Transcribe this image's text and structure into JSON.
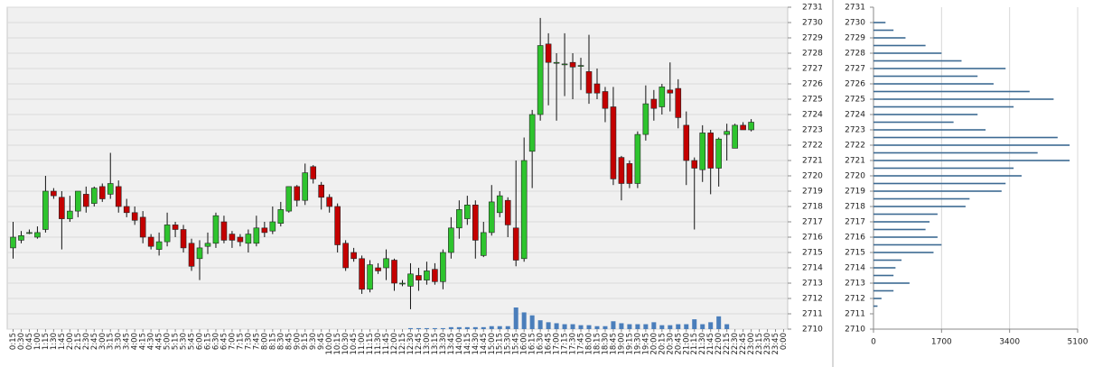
{
  "chart_data": [
    {
      "type": "candlestick",
      "categories": [
        "0:15",
        "0:30",
        "0:45",
        "1:00",
        "1:15",
        "1:30",
        "1:45",
        "2:00",
        "2:15",
        "2:30",
        "2:45",
        "3:00",
        "3:15",
        "3:30",
        "3:45",
        "4:00",
        "4:15",
        "4:30",
        "4:45",
        "5:00",
        "5:15",
        "5:30",
        "5:45",
        "6:00",
        "6:15",
        "6:30",
        "6:45",
        "7:00",
        "7:15",
        "7:30",
        "7:45",
        "8:00",
        "8:15",
        "8:30",
        "8:45",
        "9:00",
        "9:15",
        "9:30",
        "9:45",
        "10:00",
        "10:15",
        "10:30",
        "10:45",
        "11:00",
        "11:15",
        "11:30",
        "11:45",
        "12:00",
        "12:15",
        "12:30",
        "12:45",
        "13:00",
        "13:15",
        "13:30",
        "13:45",
        "14:00",
        "14:15",
        "14:30",
        "14:45",
        "15:00",
        "15:15",
        "15:30",
        "15:45",
        "16:00",
        "16:15",
        "16:30",
        "16:45",
        "17:00",
        "17:15",
        "17:30",
        "17:45",
        "18:00",
        "18:15",
        "18:30",
        "18:45",
        "19:00",
        "19:15",
        "19:30",
        "19:45",
        "20:00",
        "20:15",
        "20:30",
        "20:45",
        "21:00",
        "21:15",
        "21:30",
        "21:45",
        "22:00",
        "22:15",
        "22:30",
        "22:45",
        "23:00",
        "23:15",
        "23:30",
        "23:45",
        "0:00"
      ],
      "open": [
        2715.3,
        2715.8,
        2716.3,
        2716,
        2716.5,
        2719,
        2718.6,
        2717.2,
        2717.7,
        2718.8,
        2718.2,
        2719.3,
        2718.8,
        2719.3,
        2718,
        2717.6,
        2717.3,
        2716,
        2715.2,
        2715.7,
        2716.8,
        2716.5,
        2715.6,
        2714.6,
        2715.4,
        2715.6,
        2717,
        2716.2,
        2716,
        2715.6,
        2715.6,
        2716.6,
        2716.4,
        2716.9,
        2717.7,
        2719.3,
        2718.4,
        2720.6,
        2719.4,
        2718.6,
        2718,
        2715.6,
        2715,
        2714.6,
        2712.6,
        2714,
        2714,
        2714.5,
        2713,
        2712.8,
        2713.5,
        2713.2,
        2713.9,
        2713.1,
        2715,
        2716.6,
        2717.2,
        2718.1,
        2714.8,
        2716.3,
        2717.6,
        2718.4,
        2716.6,
        2714.6,
        2721.6,
        2724,
        2728.6,
        2727.4,
        2727.3,
        2727.4,
        2727.2,
        2726.8,
        2726,
        2725.5,
        2724.5,
        2721.2,
        2720.8,
        2719.5,
        2722.7,
        2725,
        2724.5,
        2725.6,
        2725.7,
        2723.3,
        2721,
        2720.4,
        2722.8,
        2720.5,
        2722.7,
        2721.8,
        2723.3,
        2723,
        null,
        null,
        null,
        null
      ],
      "high": [
        2717,
        2716.4,
        2716.5,
        2716.7,
        2720,
        2719.2,
        2719,
        2718.7,
        2719,
        2719.3,
        2719.3,
        2719.5,
        2721.5,
        2719.7,
        2718.5,
        2718,
        2717.7,
        2716.2,
        2716.3,
        2717.6,
        2717,
        2716.8,
        2715.9,
        2715.8,
        2716.3,
        2717.6,
        2717.4,
        2716.4,
        2716.2,
        2716.5,
        2717.4,
        2717,
        2718,
        2718.3,
        2719.3,
        2719.4,
        2720.8,
        2720.7,
        2719.6,
        2718.8,
        2718.2,
        2715.8,
        2715.3,
        2714.8,
        2714.5,
        2714.3,
        2715.2,
        2714.6,
        2713.2,
        2714.3,
        2714,
        2714.4,
        2714.3,
        2715.2,
        2717.3,
        2718.4,
        2718.7,
        2718.4,
        2717,
        2719.4,
        2719,
        2718.6,
        2721,
        2722.5,
        2724.3,
        2730.3,
        2729.3,
        2728,
        2729.3,
        2728,
        2727.7,
        2729.2,
        2727,
        2725.8,
        2725.8,
        2721.3,
        2721,
        2722.9,
        2725.9,
        2725.6,
        2726,
        2727.4,
        2726.3,
        2724.2,
        2721.2,
        2723.3,
        2723,
        2722.5,
        2723.4,
        2723.4,
        2723.5,
        2723.7,
        null,
        null,
        null,
        null
      ],
      "low": [
        2714.6,
        2715.6,
        2716.2,
        2715.9,
        2716.3,
        2718.5,
        2715.2,
        2717,
        2717.3,
        2717.6,
        2718,
        2718.3,
        2718.5,
        2717.6,
        2717.3,
        2716.8,
        2715.6,
        2715.2,
        2714.8,
        2715.4,
        2716,
        2715,
        2713.8,
        2713.2,
        2714.9,
        2715.3,
        2715.6,
        2715.3,
        2715.4,
        2715,
        2715.4,
        2716,
        2716.2,
        2716.7,
        2717.6,
        2718,
        2718.1,
        2719.5,
        2717.8,
        2717.6,
        2715,
        2713.8,
        2714.4,
        2712.3,
        2712.4,
        2713.6,
        2713.2,
        2712.5,
        2712.8,
        2711.3,
        2712.5,
        2712.9,
        2712.9,
        2712.6,
        2714.6,
        2715.9,
        2716.8,
        2714.6,
        2714.7,
        2716.1,
        2717.3,
        2716,
        2714.1,
        2714.4,
        2719.2,
        2723.6,
        2724.6,
        2723.6,
        2725.2,
        2725,
        2725.6,
        2724.7,
        2725,
        2723.5,
        2719.4,
        2718.4,
        2719.2,
        2719.2,
        2722.3,
        2723.6,
        2724,
        2724.2,
        2723.1,
        2719.4,
        2716.5,
        2719.6,
        2718.8,
        2719.3,
        2721,
        2721.8,
        2723,
        2722.9,
        null,
        null,
        null,
        null
      ],
      "close": [
        2716,
        2716.1,
        2716.3,
        2716.3,
        2719,
        2718.7,
        2717.2,
        2717.7,
        2719,
        2718,
        2719.2,
        2718.5,
        2719.5,
        2718,
        2717.6,
        2717.1,
        2716,
        2715.4,
        2715.7,
        2716.8,
        2716.5,
        2715.3,
        2714.1,
        2715.3,
        2715.6,
        2717.4,
        2715.8,
        2715.8,
        2715.7,
        2716.2,
        2716.6,
        2716.3,
        2717,
        2717.8,
        2719.3,
        2718.4,
        2720.2,
        2719.8,
        2718.6,
        2718,
        2715.5,
        2714,
        2714.6,
        2712.6,
        2714.2,
        2713.8,
        2714.6,
        2713,
        2713,
        2713.6,
        2713.2,
        2713.8,
        2713.1,
        2715,
        2716.6,
        2717.8,
        2718.1,
        2715.8,
        2716.3,
        2718.3,
        2718.7,
        2716.8,
        2714.5,
        2721,
        2724,
        2728.5,
        2727.4,
        2727.4,
        2727.3,
        2727.1,
        2727.2,
        2725.4,
        2725.4,
        2724.4,
        2719.8,
        2719.5,
        2719.5,
        2722.7,
        2724.7,
        2724.4,
        2725.8,
        2725.4,
        2723.8,
        2721,
        2720.5,
        2722.8,
        2720.5,
        2722.4,
        2722.9,
        2723.3,
        2723,
        2723.5,
        null,
        null,
        null,
        null
      ],
      "volume": [
        null,
        null,
        null,
        null,
        null,
        null,
        null,
        null,
        null,
        null,
        null,
        null,
        null,
        null,
        null,
        null,
        null,
        null,
        null,
        null,
        null,
        null,
        null,
        null,
        null,
        null,
        null,
        null,
        null,
        null,
        null,
        null,
        null,
        null,
        null,
        null,
        null,
        null,
        null,
        null,
        null,
        null,
        null,
        null,
        null,
        null,
        null,
        null,
        null,
        1,
        1,
        1,
        1,
        1,
        2,
        2,
        2,
        2,
        2,
        3,
        3,
        3,
        22,
        17,
        14,
        9,
        7,
        6,
        5,
        5,
        4,
        4,
        3,
        3,
        8,
        6,
        5,
        5,
        5,
        7,
        4,
        4,
        5,
        5,
        10,
        5,
        7,
        13,
        5,
        null,
        null,
        null,
        null,
        null,
        null,
        null
      ],
      "up_color": "#2ec42e",
      "down_color": "#c40000",
      "volume_color": "#4a7ebb",
      "ylim": [
        2710,
        2731
      ],
      "yticks": [
        2710,
        2711,
        2712,
        2713,
        2714,
        2715,
        2716,
        2717,
        2718,
        2719,
        2720,
        2721,
        2722,
        2723,
        2724,
        2725,
        2726,
        2727,
        2728,
        2729,
        2730,
        2731
      ],
      "grid": true
    },
    {
      "type": "profile",
      "y": [
        2730,
        2729.5,
        2729,
        2728.5,
        2728,
        2727.5,
        2727,
        2726.5,
        2726,
        2725.5,
        2725,
        2724.5,
        2724,
        2723.5,
        2723,
        2722.5,
        2722,
        2721.5,
        2721,
        2720.5,
        2720,
        2719.5,
        2719,
        2718.5,
        2718,
        2717.5,
        2717,
        2716.5,
        2716,
        2715.5,
        2715,
        2714.5,
        2714,
        2713.5,
        2713,
        2712.5,
        2712,
        2711.5
      ],
      "values": [
        300,
        500,
        800,
        1300,
        1700,
        2200,
        3300,
        2600,
        3000,
        3900,
        4500,
        3500,
        2600,
        2000,
        2800,
        4600,
        4900,
        4100,
        4900,
        3500,
        3700,
        3300,
        3200,
        2400,
        2300,
        1600,
        1400,
        1300,
        1600,
        1700,
        1500,
        700,
        550,
        500,
        900,
        500,
        200,
        100
      ],
      "color": "#3d6a93",
      "xlim": [
        0,
        5100
      ],
      "xticks": [
        0,
        1700,
        3400,
        5100
      ],
      "ylim": [
        2710,
        2731
      ],
      "yticks": [
        2710,
        2711,
        2712,
        2713,
        2714,
        2715,
        2716,
        2717,
        2718,
        2719,
        2720,
        2721,
        2722,
        2723,
        2724,
        2725,
        2726,
        2727,
        2728,
        2729,
        2730,
        2731
      ],
      "grid": true
    }
  ]
}
